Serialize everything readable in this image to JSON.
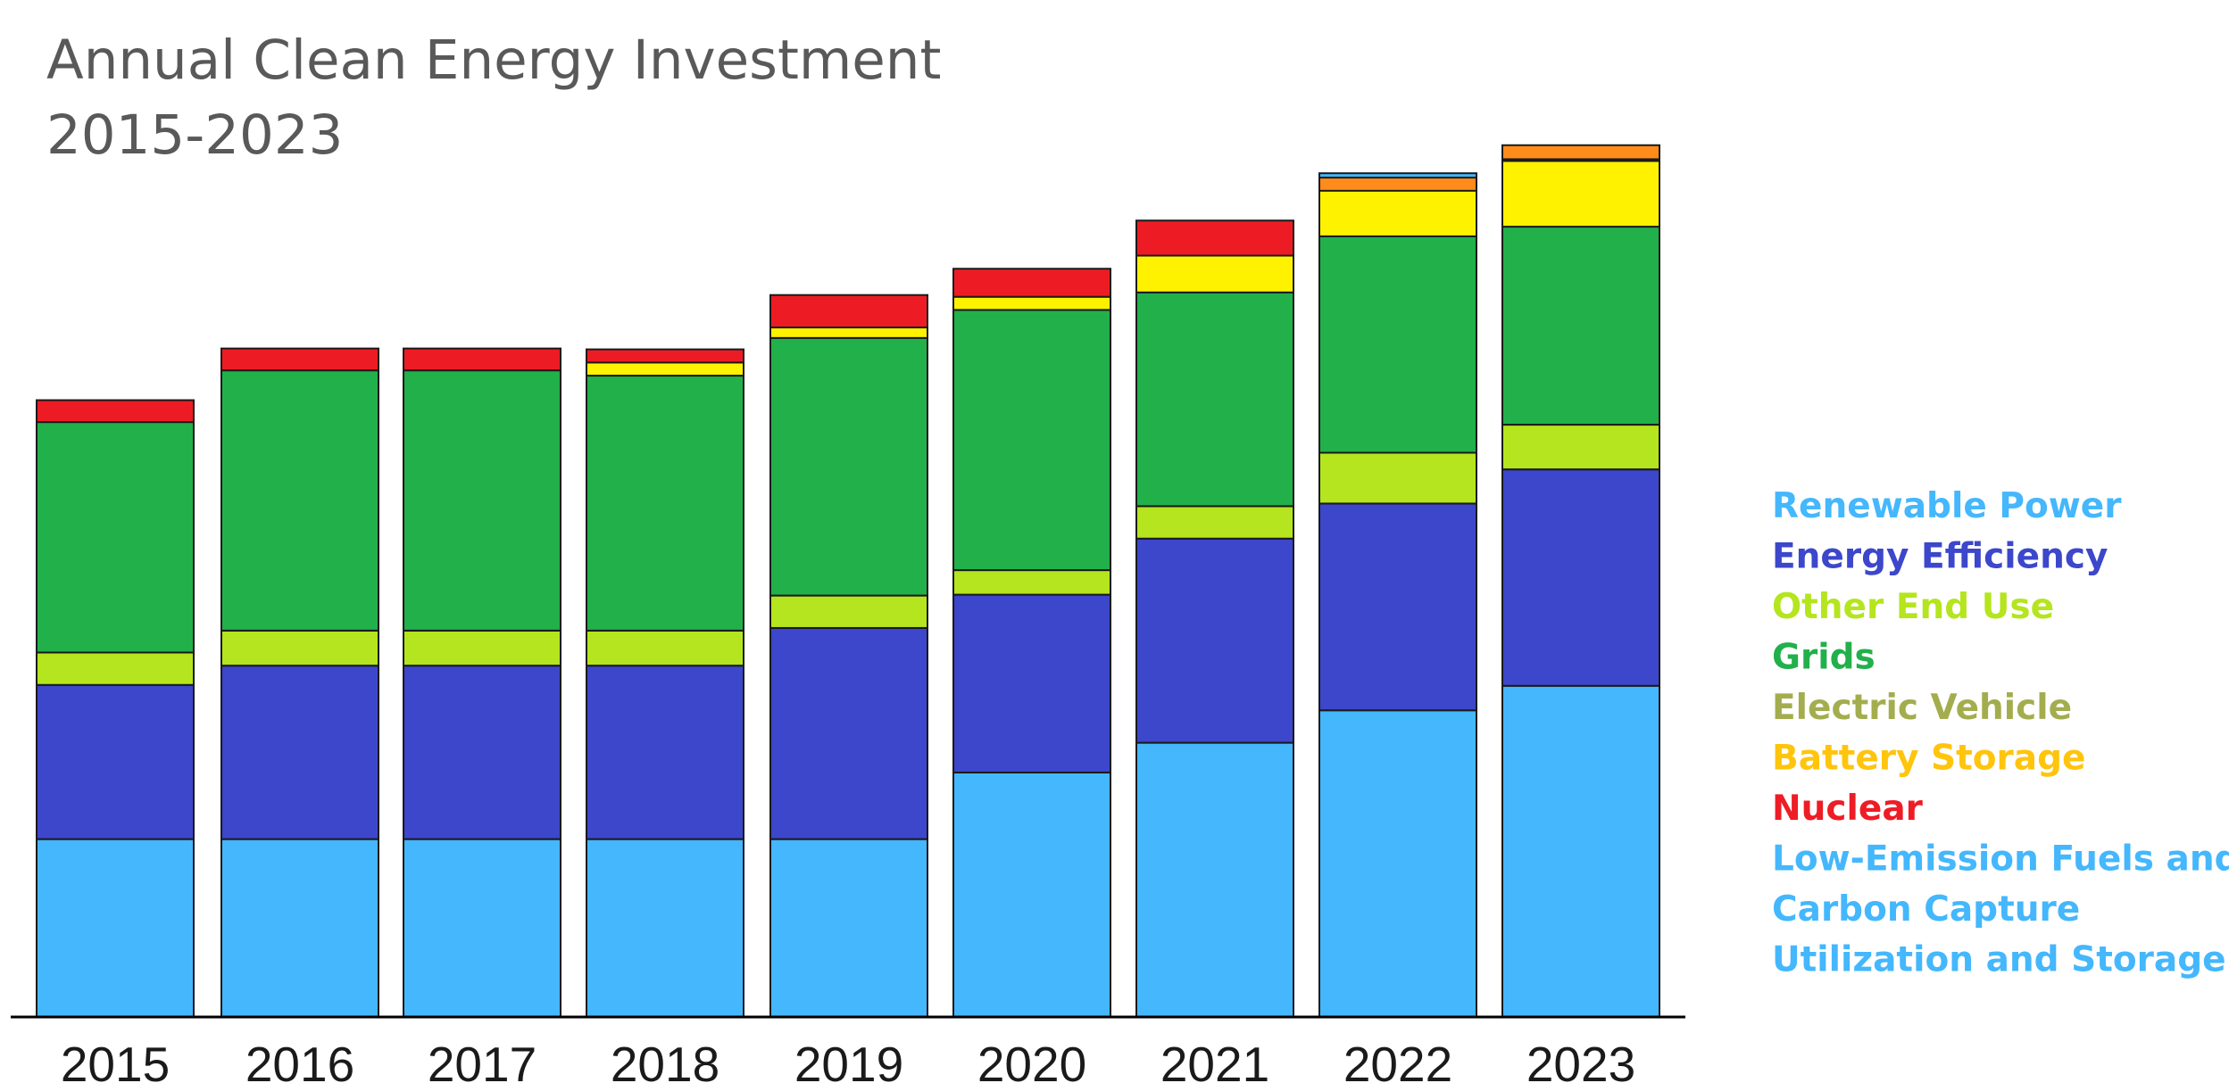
{
  "chart_data": {
    "type": "bar",
    "stacked": true,
    "title": [
      "Annual Clean Energy Investment",
      "2015-2023"
    ],
    "xlabel": "",
    "ylabel": "",
    "categories": [
      "2015",
      "2016",
      "2017",
      "2018",
      "2019",
      "2020",
      "2021",
      "2022",
      "2023"
    ],
    "ylim": [
      0,
      1120
    ],
    "grid": false,
    "legend_position": "right",
    "series": [
      {
        "name": "Renewable Power",
        "color": "#44b7fd",
        "values": [
          203,
          203,
          203,
          203,
          203,
          279,
          313,
          350,
          378
        ]
      },
      {
        "name": "Energy Efficiency",
        "color": "#3c47cb",
        "values": [
          176,
          198,
          198,
          198,
          241,
          203,
          233,
          236,
          247
        ]
      },
      {
        "name": "Other End Use",
        "color": "#b4e51e",
        "values": [
          37,
          40,
          40,
          40,
          37,
          28,
          37,
          58,
          51
        ]
      },
      {
        "name": "Grids",
        "color": "#22b04b",
        "values": [
          263,
          297,
          297,
          291,
          294,
          297,
          244,
          247,
          226
        ]
      },
      {
        "name": "Electric Vehicle",
        "color": "#a4ad4e",
        "values": [
          0,
          0,
          0,
          0,
          0,
          0,
          0,
          0,
          0
        ]
      },
      {
        "name": "Battery Storage",
        "color": "#fff200",
        "values": [
          0,
          0,
          0,
          15,
          12,
          15,
          42,
          63,
          75
        ]
      },
      {
        "name": "Nuclear",
        "color": "#ed1c24",
        "values": [
          25,
          25,
          25,
          15,
          37,
          32,
          40,
          0,
          0
        ]
      },
      {
        "name": "Low-Emission Fuels and Carbon Capture Utilization and Storage",
        "color": "#44b7fd",
        "values": [
          0,
          0,
          0,
          0,
          0,
          0,
          0,
          9,
          12
        ]
      }
    ],
    "overlay_marks": [
      {
        "category": "2022",
        "color": "#ff8c1a",
        "value_from": 943,
        "value_to": 958
      },
      {
        "category": "2023",
        "color": "#ff8c1a",
        "value_from": 979,
        "value_to": 995
      }
    ],
    "legend": [
      {
        "label": "Renewable Power",
        "color": "#44b7fd"
      },
      {
        "label": "Energy Efficiency",
        "color": "#3c47cb"
      },
      {
        "label": "Other End Use",
        "color": "#b4e51e"
      },
      {
        "label": "Grids",
        "color": "#22b04b"
      },
      {
        "label": "Electric Vehicle",
        "color": "#a4ad4e"
      },
      {
        "label": "Battery Storage",
        "color": "#ffc40c"
      },
      {
        "label": "Nuclear",
        "color": "#ee1c25"
      },
      {
        "label": "Low-Emission Fuels and",
        "color": "#44b7fd"
      },
      {
        "label": "Carbon Capture",
        "color": "#44b7fd"
      },
      {
        "label": "Utilization and Storage",
        "color": "#44b7fd"
      }
    ]
  }
}
